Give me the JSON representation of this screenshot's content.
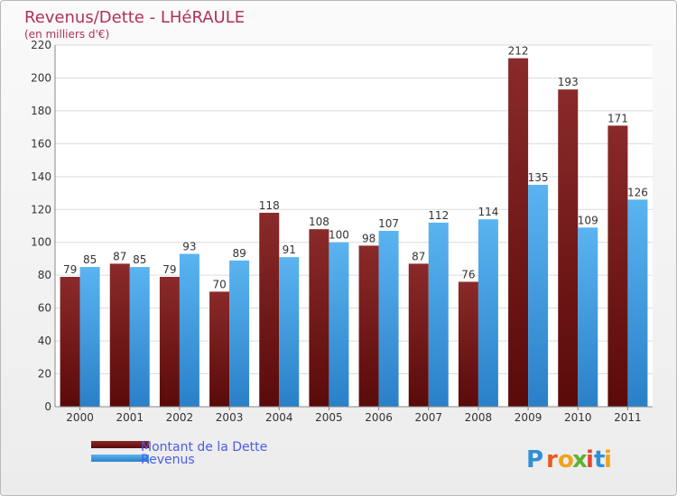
{
  "chart_data": {
    "type": "bar",
    "title": "Revenus/Dette - LHéRAULE",
    "subtitle": "(en milliers d'€)",
    "categories": [
      "2000",
      "2001",
      "2002",
      "2003",
      "2004",
      "2005",
      "2006",
      "2007",
      "2008",
      "2009",
      "2010",
      "2011"
    ],
    "series": [
      {
        "name": "Montant de la Dette",
        "color": "#7a1a1a",
        "values": [
          79,
          87,
          79,
          70,
          118,
          108,
          98,
          87,
          76,
          212,
          193,
          171
        ]
      },
      {
        "name": "Revenus",
        "color": "#4aa3e3",
        "values": [
          85,
          85,
          93,
          89,
          91,
          100,
          107,
          112,
          114,
          135,
          109,
          126
        ]
      }
    ],
    "ylim": [
      0,
      220
    ],
    "yticks": [
      0,
      20,
      40,
      60,
      80,
      100,
      120,
      140,
      160,
      180,
      200,
      220
    ],
    "grid": true,
    "legend_position": "bottom-left"
  },
  "logo": {
    "letters": [
      {
        "char": "P",
        "color": "#2f8fd6"
      },
      {
        "char": "r",
        "color": "#e85a1c"
      },
      {
        "char": "o",
        "color": "#f2a21b"
      },
      {
        "char": "x",
        "color": "#5fb133"
      },
      {
        "char": "i",
        "color": "#e8452f"
      },
      {
        "char": "t",
        "color": "#2f8fd6"
      },
      {
        "char": "i",
        "color": "#f2a21b"
      }
    ]
  }
}
